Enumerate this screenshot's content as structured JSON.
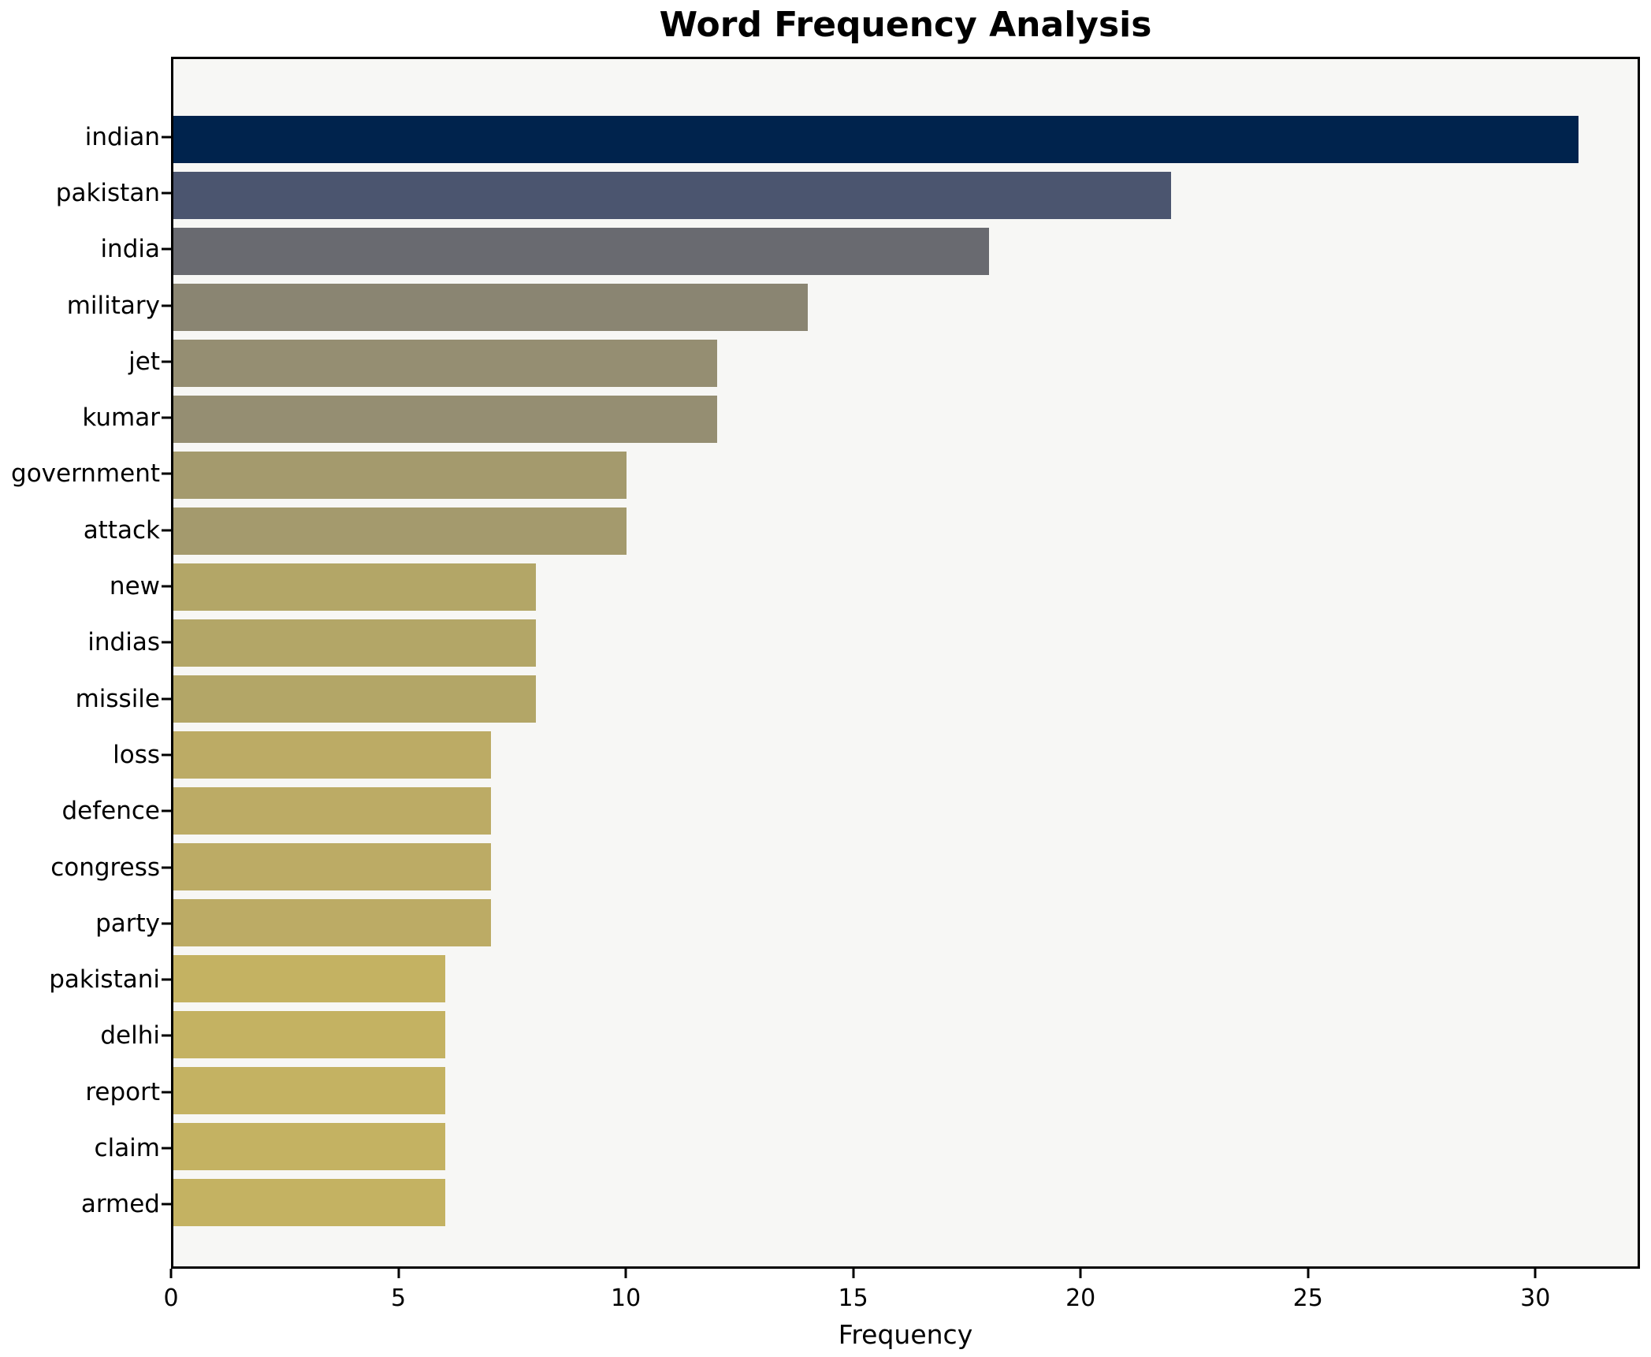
{
  "chart_data": {
    "type": "bar",
    "orientation": "horizontal",
    "title": "Word Frequency Analysis",
    "xlabel": "Frequency",
    "ylabel": "",
    "xlim": [
      0,
      32.3
    ],
    "xticks": [
      0,
      5,
      10,
      15,
      20,
      25,
      30
    ],
    "grid": false,
    "legend": "none",
    "plot_background": "#f7f7f5",
    "figure_background": "#ffffff",
    "spine_color": "#000000",
    "categories": [
      "indian",
      "pakistan",
      "india",
      "military",
      "jet",
      "kumar",
      "government",
      "attack",
      "new",
      "indias",
      "missile",
      "loss",
      "defence",
      "congress",
      "party",
      "pakistani",
      "delhi",
      "report",
      "claim",
      "armed"
    ],
    "values": [
      31,
      22,
      18,
      14,
      12,
      12,
      10,
      10,
      8,
      8,
      8,
      7,
      7,
      7,
      7,
      6,
      6,
      6,
      6,
      6
    ],
    "bar_colors": [
      "#00234d",
      "#4b556f",
      "#696a70",
      "#8a8572",
      "#958e72",
      "#958e72",
      "#a49a6d",
      "#a49a6d",
      "#b3a667",
      "#b3a667",
      "#b3a667",
      "#bcab65",
      "#bcab65",
      "#bcab65",
      "#bcab65",
      "#c4b262",
      "#c4b262",
      "#c4b262",
      "#c4b262",
      "#c4b262"
    ],
    "colormap": "cividis"
  }
}
